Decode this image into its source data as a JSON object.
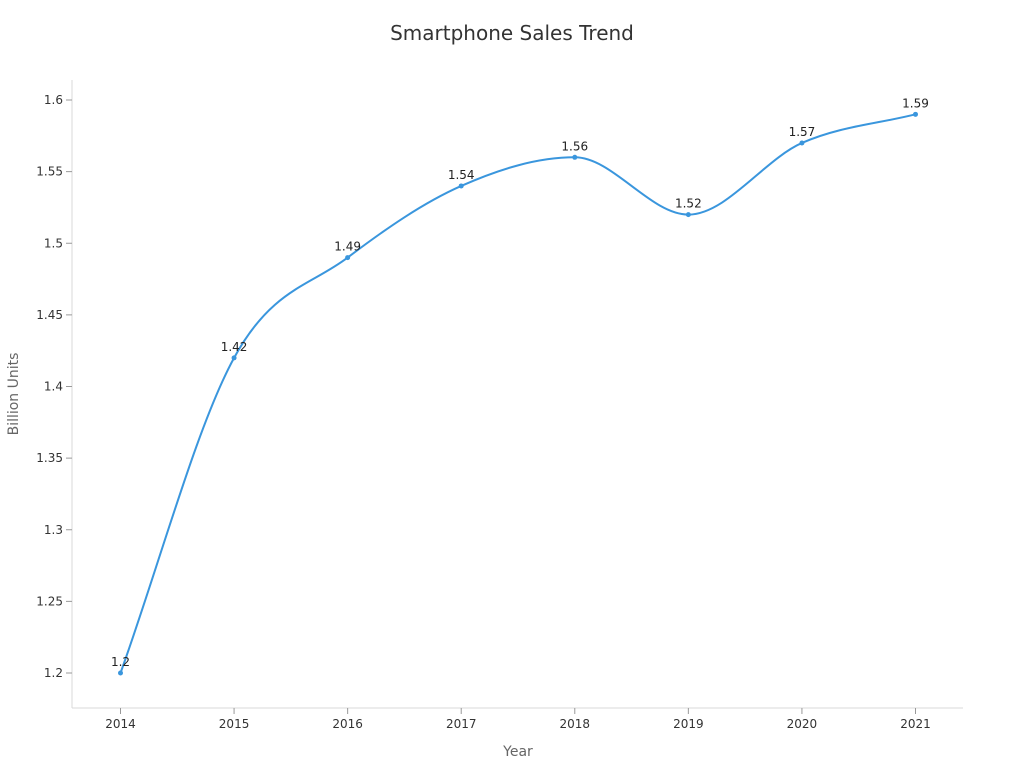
{
  "chart_data": {
    "type": "line",
    "title": "Smartphone Sales Trend",
    "xlabel": "Year",
    "ylabel": "Billion Units",
    "categories": [
      "2014",
      "2015",
      "2016",
      "2017",
      "2018",
      "2019",
      "2020",
      "2021"
    ],
    "series": [
      {
        "values": [
          1.2,
          1.42,
          1.49,
          1.54,
          1.56,
          1.52,
          1.57,
          1.59
        ],
        "data_labels": [
          "1.2",
          "1.42",
          "1.49",
          "1.54",
          "1.56",
          "1.52",
          "1.57",
          "1.59"
        ]
      }
    ],
    "y_ticks": [
      1.2,
      1.25,
      1.3,
      1.35,
      1.4,
      1.45,
      1.5,
      1.55,
      1.6
    ],
    "y_tick_labels": [
      "1.2",
      "1.25",
      "1.3",
      "1.35",
      "1.4",
      "1.45",
      "1.5",
      "1.55",
      "1.6"
    ],
    "ylim": [
      1.2,
      1.6
    ],
    "smooth": true,
    "markers": true,
    "grid": false,
    "legend": "none",
    "line_color": "#3a96dd"
  }
}
